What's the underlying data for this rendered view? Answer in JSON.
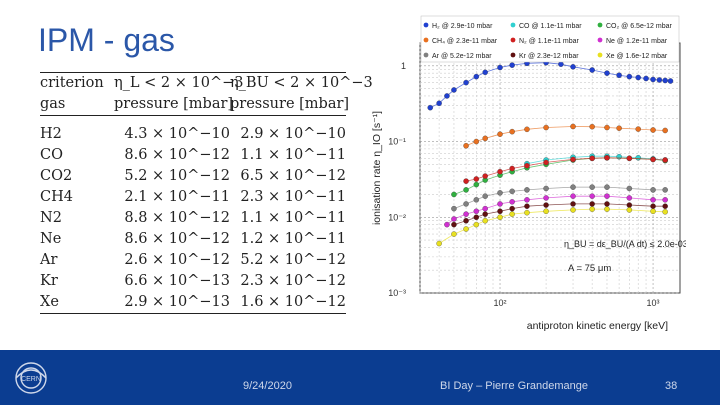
{
  "slide": {
    "title": "IPM - gas",
    "footer": {
      "date": "9/24/2020",
      "center": "BI Day – Pierre Grandemange",
      "page": "38"
    }
  },
  "table": {
    "header1": [
      "criterion",
      "η_L < 2 × 10^−3",
      "η_BU < 2 × 10^−3"
    ],
    "header2": [
      "gas",
      "pressure [mbar]",
      "pressure [mbar]"
    ],
    "rows": [
      [
        "H2",
        "4.3 × 10^−10",
        "2.9 × 10^−10"
      ],
      [
        "CO",
        "8.6 × 10^−12",
        "1.1 × 10^−11"
      ],
      [
        "CO2",
        "5.2 × 10^−12",
        "6.5 × 10^−12"
      ],
      [
        "CH4",
        "2.1 × 10^−11",
        "2.3 × 10^−11"
      ],
      [
        "N2",
        "8.8 × 10^−12",
        "1.1 × 10^−11"
      ],
      [
        "Ne",
        "8.6 × 10^−12",
        "1.2 × 10^−11"
      ],
      [
        "Ar",
        "2.6 × 10^−12",
        "5.2 × 10^−12"
      ],
      [
        "Kr",
        "6.6 × 10^−13",
        "2.3 × 10^−12"
      ],
      [
        "Xe",
        "2.9 × 10^−13",
        "1.6 × 10^−12"
      ]
    ]
  },
  "chart_data": {
    "type": "scatter",
    "xlabel": "antiproton kinetic energy [keV]",
    "ylabel": "ionisation rate η_IO [s⁻¹]",
    "xscale": "log",
    "yscale": "log",
    "xlim": [
      30,
      1500
    ],
    "ylim": [
      0.001,
      2
    ],
    "xticks": [
      {
        "v": 100,
        "label": "10²"
      },
      {
        "v": 1000,
        "label": "10³"
      }
    ],
    "yticks": [
      {
        "v": 1,
        "label": "1"
      },
      {
        "v": 0.1,
        "label": "10⁻¹"
      },
      {
        "v": 0.01,
        "label": "10⁻²"
      },
      {
        "v": 0.001,
        "label": "10⁻³"
      }
    ],
    "grid": true,
    "legend_position": "top",
    "annotations": [
      "η_BU = dε_BU/(A dt) ≤ 2.0e-03",
      "A = 75 μm"
    ],
    "series": [
      {
        "name": "H₂ @ 2.9e-10 mbar",
        "color": "#2040d0",
        "x": [
          35,
          40,
          45,
          50,
          60,
          70,
          80,
          100,
          120,
          150,
          200,
          250,
          300,
          400,
          500,
          600,
          700,
          800,
          900,
          1000,
          1100,
          1200,
          1300
        ],
        "y": [
          0.28,
          0.32,
          0.4,
          0.48,
          0.6,
          0.72,
          0.82,
          0.95,
          1.02,
          1.08,
          1.1,
          1.05,
          0.97,
          0.88,
          0.8,
          0.75,
          0.72,
          0.7,
          0.68,
          0.66,
          0.65,
          0.64,
          0.63
        ]
      },
      {
        "name": "CO @ 1.1e-11 mbar",
        "color": "#30d0d0",
        "x": [
          150,
          200,
          300,
          400,
          500,
          600,
          800,
          1000,
          1200
        ],
        "y": [
          0.051,
          0.057,
          0.062,
          0.064,
          0.064,
          0.063,
          0.061,
          0.059,
          0.057
        ]
      },
      {
        "name": "CO₂ @ 6.5e-12 mbar",
        "color": "#30b040",
        "x": [
          50,
          60,
          70,
          80,
          100,
          120,
          150,
          200,
          300,
          400,
          500,
          700,
          1000,
          1200
        ],
        "y": [
          0.02,
          0.023,
          0.027,
          0.031,
          0.036,
          0.04,
          0.045,
          0.05,
          0.057,
          0.06,
          0.061,
          0.06,
          0.058,
          0.056
        ]
      },
      {
        "name": "CH₄ @ 2.3e-11 mbar",
        "color": "#e87020",
        "x": [
          60,
          70,
          80,
          100,
          120,
          150,
          200,
          300,
          400,
          500,
          600,
          800,
          1000,
          1200
        ],
        "y": [
          0.088,
          0.1,
          0.11,
          0.125,
          0.135,
          0.145,
          0.153,
          0.158,
          0.157,
          0.153,
          0.15,
          0.146,
          0.142,
          0.14
        ]
      },
      {
        "name": "N₂ @ 1.1e-11 mbar",
        "color": "#d02020",
        "x": [
          60,
          70,
          80,
          100,
          120,
          150,
          200,
          300,
          400,
          500,
          700,
          1000,
          1200
        ],
        "y": [
          0.03,
          0.032,
          0.035,
          0.04,
          0.044,
          0.048,
          0.053,
          0.058,
          0.06,
          0.061,
          0.06,
          0.058,
          0.057
        ]
      },
      {
        "name": "Ne @ 1.2e-11 mbar",
        "color": "#d030d0",
        "x": [
          45,
          50,
          60,
          70,
          80,
          100,
          120,
          150,
          200,
          300,
          400,
          500,
          700,
          1000,
          1200
        ],
        "y": [
          0.008,
          0.0095,
          0.011,
          0.012,
          0.013,
          0.015,
          0.016,
          0.017,
          0.018,
          0.019,
          0.019,
          0.019,
          0.018,
          0.017,
          0.017
        ]
      },
      {
        "name": "Ar @ 5.2e-12 mbar",
        "color": "#808080",
        "x": [
          50,
          60,
          70,
          80,
          100,
          120,
          150,
          200,
          300,
          400,
          500,
          700,
          1000,
          1200
        ],
        "y": [
          0.013,
          0.015,
          0.017,
          0.019,
          0.021,
          0.022,
          0.023,
          0.024,
          0.025,
          0.025,
          0.025,
          0.024,
          0.023,
          0.023
        ]
      },
      {
        "name": "Kr @ 2.3e-12 mbar",
        "color": "#601010",
        "x": [
          50,
          60,
          70,
          80,
          100,
          120,
          150,
          200,
          300,
          400,
          500,
          700,
          1000,
          1200
        ],
        "y": [
          0.008,
          0.009,
          0.01,
          0.011,
          0.012,
          0.013,
          0.014,
          0.0145,
          0.015,
          0.015,
          0.015,
          0.0145,
          0.014,
          0.014
        ]
      },
      {
        "name": "Xe @ 1.6e-12 mbar",
        "color": "#e8e020",
        "x": [
          40,
          50,
          60,
          70,
          80,
          100,
          120,
          150,
          200,
          300,
          400,
          500,
          700,
          1000,
          1200
        ],
        "y": [
          0.0045,
          0.006,
          0.007,
          0.008,
          0.009,
          0.01,
          0.011,
          0.0115,
          0.012,
          0.0125,
          0.0128,
          0.0128,
          0.0125,
          0.012,
          0.0118
        ]
      }
    ]
  }
}
